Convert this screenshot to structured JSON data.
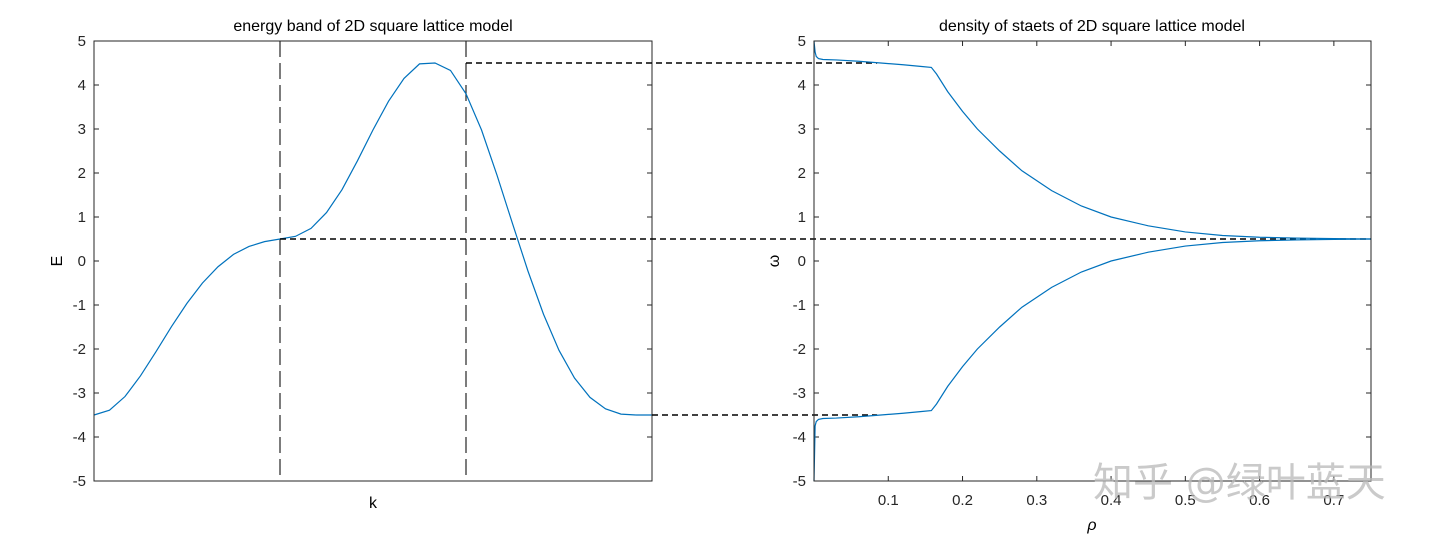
{
  "chart_data": [
    {
      "type": "line",
      "title": "energy band of 2D square lattice model",
      "xlabel": "k",
      "ylabel": "E",
      "ylim": [
        -5,
        5
      ],
      "y_ticks": [
        "-5",
        "-4",
        "-3",
        "-2",
        "-1",
        "0",
        "1",
        "2",
        "3",
        "4",
        "5"
      ],
      "x_ticks": [],
      "grid": false,
      "series": [
        {
          "color": "#0072BD",
          "x": [
            0,
            0.0833,
            0.1667,
            0.25,
            0.3333,
            0.4167,
            0.5,
            0.5833,
            0.6667,
            0.75,
            0.8333,
            0.9167,
            1.0,
            1.0833,
            1.1667,
            1.25,
            1.3333,
            1.4167,
            1.5,
            1.5833,
            1.6667,
            1.75,
            1.8333,
            1.9167,
            2.0,
            2.0833,
            2.1667,
            2.25,
            2.3333,
            2.4167,
            2.5,
            2.5833,
            2.6667,
            2.75,
            2.8333,
            2.9167,
            3.0
          ],
          "y": [
            -3.5,
            -3.39,
            -3.08,
            -2.61,
            -2.06,
            -1.49,
            -0.96,
            -0.5,
            -0.13,
            0.15,
            0.33,
            0.44,
            0.5,
            0.56,
            0.74,
            1.1,
            1.62,
            2.28,
            2.98,
            3.63,
            4.15,
            4.48,
            4.5,
            4.33,
            3.8,
            2.98,
            1.95,
            0.85,
            -0.23,
            -1.21,
            -2.03,
            -2.66,
            -3.1,
            -3.36,
            -3.48,
            -3.5,
            -3.5
          ]
        }
      ],
      "vlines": [
        1,
        2
      ],
      "hlines": [
        4.5,
        0.5,
        -3.5
      ]
    },
    {
      "type": "line",
      "title": "density of staets of 2D square lattice model",
      "xlabel": "ρ",
      "ylabel": "ω",
      "xlim": [
        0,
        0.75
      ],
      "ylim": [
        -5,
        5
      ],
      "x_ticks": [
        "0.1",
        "0.2",
        "0.3",
        "0.4",
        "0.5",
        "0.6",
        "0.7"
      ],
      "y_ticks": [
        "-5",
        "-4",
        "-3",
        "-2",
        "-1",
        "0",
        "1",
        "2",
        "3",
        "4",
        "5"
      ],
      "grid": false,
      "series": [
        {
          "color": "#0072BD",
          "x": [
            0.0,
            0.0015,
            0.003,
            0.006,
            0.012,
            0.03,
            0.06,
            0.09,
            0.12,
            0.145,
            0.158,
            0.165,
            0.18,
            0.2,
            0.22,
            0.25,
            0.28,
            0.32,
            0.36,
            0.4,
            0.45,
            0.5,
            0.55,
            0.6,
            0.65,
            0.7,
            0.75
          ],
          "y": [
            5.0,
            4.75,
            4.65,
            4.6,
            4.58,
            4.57,
            4.54,
            4.5,
            4.46,
            4.42,
            4.4,
            4.25,
            3.85,
            3.4,
            3.0,
            2.5,
            2.05,
            1.6,
            1.25,
            1.0,
            0.8,
            0.66,
            0.58,
            0.54,
            0.52,
            0.51,
            0.5
          ]
        },
        {
          "color": "#0072BD",
          "x": [
            0.0,
            0.0015,
            0.003,
            0.006,
            0.012,
            0.03,
            0.06,
            0.09,
            0.12,
            0.145,
            0.158,
            0.165,
            0.18,
            0.2,
            0.22,
            0.25,
            0.28,
            0.32,
            0.36,
            0.4,
            0.45,
            0.5,
            0.55,
            0.6,
            0.65,
            0.7,
            0.75
          ],
          "y": [
            -5.0,
            -3.75,
            -3.65,
            -3.6,
            -3.58,
            -3.57,
            -3.54,
            -3.5,
            -3.46,
            -3.42,
            -3.4,
            -3.25,
            -2.85,
            -2.4,
            -2.0,
            -1.5,
            -1.05,
            -0.6,
            -0.25,
            0.0,
            0.2,
            0.34,
            0.42,
            0.46,
            0.48,
            0.49,
            0.5
          ]
        }
      ],
      "hlines": [
        0.5
      ]
    }
  ],
  "watermark": "知乎 @绿叶蓝天"
}
